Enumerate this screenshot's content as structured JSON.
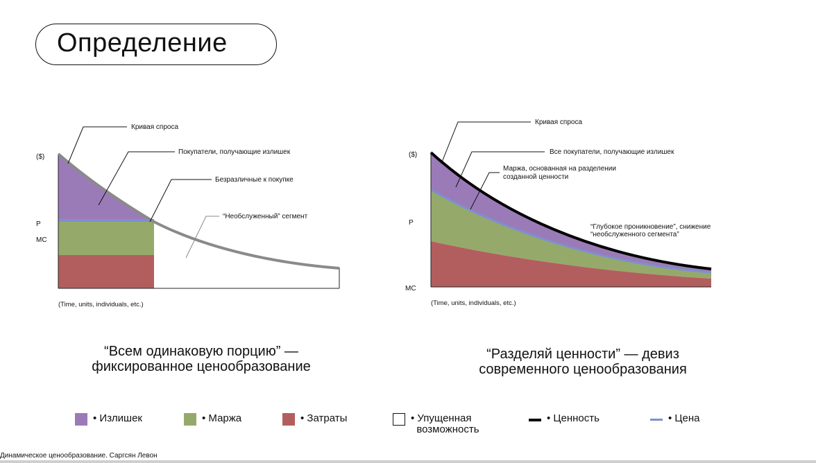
{
  "title": "Определение",
  "colors": {
    "surplus": "#9a7bb7",
    "margin": "#95aa6a",
    "costs": "#b35e5e",
    "value": "#000000",
    "price": "#7f8fd0",
    "curve_left": "#8a8a8a"
  },
  "left_diagram": {
    "y_label": "($)",
    "p_label": "P",
    "mc_label": "MC",
    "x_label": "(Time, units, individuals, etc.)",
    "callouts": {
      "demand": "Кривая спроса",
      "surplus_buyers": "Покупатели, получающие излишек",
      "indifferent": "Безразличные к покупке",
      "unserved": "“Необслуженный” сегмент"
    },
    "caption_line1": "“Всем одинаковую порцию” —",
    "caption_line2": "фиксированное ценообразование"
  },
  "right_diagram": {
    "y_label": "($)",
    "p_label": "P",
    "mc_label": "MC",
    "x_label": "(Time, units, individuals, etc.)",
    "callouts": {
      "demand": "Кривая спроса",
      "all_buyers": "Все покупатели, получающие излишек",
      "margin_line1": "Маржа, основанная на разделении",
      "margin_line2": "созданной ценности",
      "deep_line1": "“Глубокое проникновение”, снижение",
      "deep_line2": "“необслуженного сегмента”"
    },
    "caption_line1": "“Разделяй ценности” —  девиз",
    "caption_line2": "современного ценообразования"
  },
  "legend": [
    {
      "label": "• Излишек",
      "icon": "purple-square"
    },
    {
      "label": "• Маржа",
      "icon": "green-square"
    },
    {
      "label": "• Затраты",
      "icon": "red-square"
    },
    {
      "label": "• Упущенная\n  возможность",
      "icon": "white-square"
    },
    {
      "label": "• Ценность",
      "icon": "black-line"
    },
    {
      "label": "• Цена",
      "icon": "blue-line"
    }
  ],
  "footer": "Динамическое ценообразование. Саргсян Левон"
}
